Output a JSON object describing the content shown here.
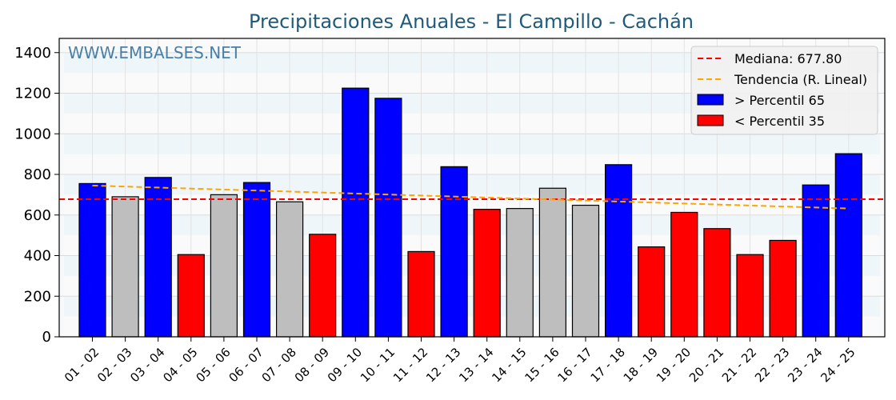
{
  "chart_data": {
    "type": "bar",
    "title": "Precipitaciones Anuales - El Campillo - Cachán",
    "watermark": "WWW.EMBALSES.NET",
    "xlabel": "",
    "ylabel": "",
    "ylim": [
      0,
      1470
    ],
    "yticks": [
      0,
      200,
      400,
      600,
      800,
      1000,
      1200,
      1400
    ],
    "grid": true,
    "legend_position": "top-right",
    "categories": [
      "01 - 02",
      "02 - 03",
      "03 - 04",
      "04 - 05",
      "05 - 06",
      "06 - 07",
      "07 - 08",
      "08 - 09",
      "09 - 10",
      "10 - 11",
      "11 - 12",
      "12 - 13",
      "13 - 14",
      "14 - 15",
      "15 - 16",
      "16 - 17",
      "17 - 18",
      "18 - 19",
      "19 - 20",
      "20 - 21",
      "21 - 22",
      "22 - 23",
      "23 - 24",
      "24 - 25"
    ],
    "values": [
      755,
      690,
      785,
      405,
      700,
      760,
      665,
      505,
      1225,
      1175,
      420,
      838,
      628,
      632,
      732,
      648,
      848,
      443,
      613,
      533,
      405,
      475,
      748,
      902
    ],
    "bar_class": [
      "high",
      "mid",
      "high",
      "low",
      "mid",
      "high",
      "mid",
      "low",
      "high",
      "high",
      "low",
      "high",
      "low",
      "mid",
      "mid",
      "mid",
      "high",
      "low",
      "low",
      "low",
      "low",
      "low",
      "high",
      "high"
    ],
    "median": 677.8,
    "trend": {
      "start": 745,
      "end": 632
    },
    "colors": {
      "high": "#0000ff",
      "low": "#ff0000",
      "mid": "#bebebe",
      "median": "#ff0000",
      "trend": "#ffa500"
    },
    "legend": [
      {
        "label": "Mediana: 677.80",
        "kind": "dashed",
        "color_key": "median"
      },
      {
        "label": "Tendencia (R. Lineal)",
        "kind": "dashed",
        "color_key": "trend"
      },
      {
        "label": " > Percentil 65",
        "kind": "box",
        "color_key": "high"
      },
      {
        "label": " < Percentil 35",
        "kind": "box",
        "color_key": "low"
      }
    ]
  }
}
